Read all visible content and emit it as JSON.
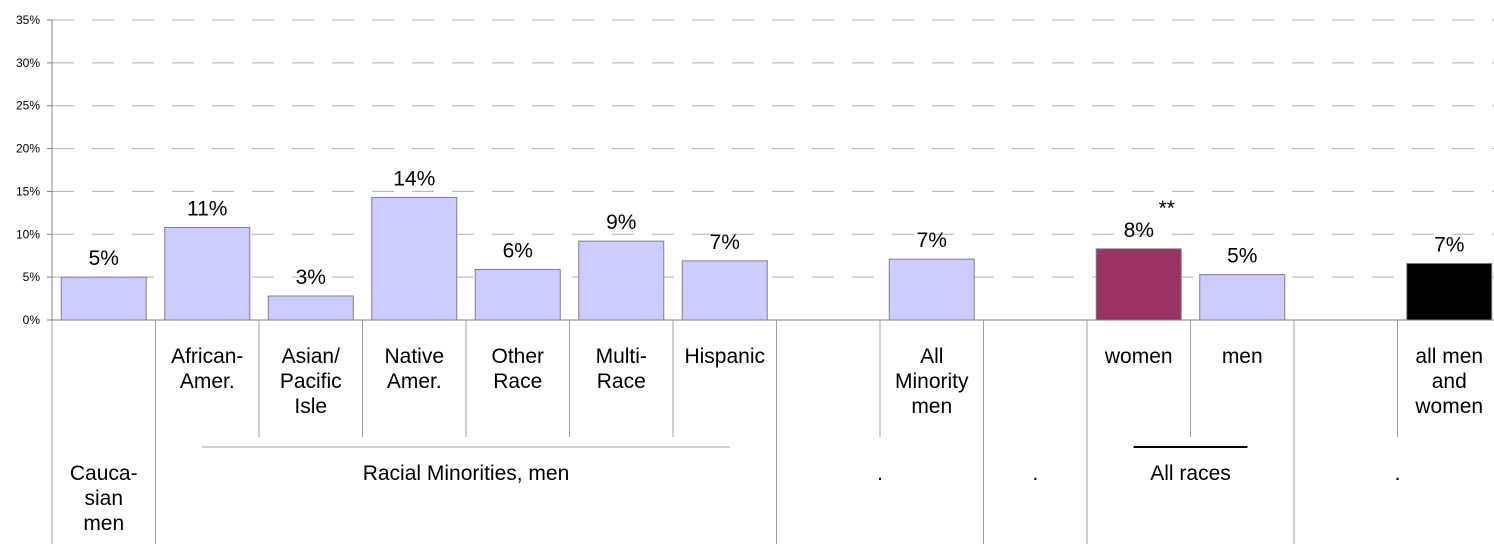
{
  "chart_data": {
    "type": "bar",
    "title": "",
    "xlabel": "",
    "ylabel": "",
    "ylim": [
      0,
      35
    ],
    "y_ticks": [
      {
        "value": 0,
        "label": "0%"
      },
      {
        "value": 5,
        "label": "5%"
      },
      {
        "value": 10,
        "label": "10%"
      },
      {
        "value": 15,
        "label": "15%"
      },
      {
        "value": 20,
        "label": "20%"
      },
      {
        "value": 25,
        "label": "25%"
      },
      {
        "value": 30,
        "label": "30%"
      },
      {
        "value": 35,
        "label": "35%"
      }
    ],
    "grid": "dashed horizontal",
    "categories": [
      {
        "lines": [],
        "value": 5,
        "label": "5%",
        "color": "#ccccff"
      },
      {
        "lines": [
          "African-",
          "Amer."
        ],
        "value": 10.8,
        "label": "11%",
        "color": "#ccccff"
      },
      {
        "lines": [
          "Asian/",
          "Pacific",
          "Isle"
        ],
        "value": 2.8,
        "label": "3%",
        "color": "#ccccff"
      },
      {
        "lines": [
          "Native",
          "Amer."
        ],
        "value": 14.3,
        "label": "14%",
        "color": "#ccccff"
      },
      {
        "lines": [
          "Other",
          "Race"
        ],
        "value": 5.9,
        "label": "6%",
        "color": "#ccccff"
      },
      {
        "lines": [
          "Multi-",
          "Race"
        ],
        "value": 9.2,
        "label": "9%",
        "color": "#ccccff"
      },
      {
        "lines": [
          "Hispanic"
        ],
        "value": 6.9,
        "label": "7%",
        "color": "#ccccff"
      },
      {
        "lines": [],
        "value": null,
        "label": "",
        "color": ""
      },
      {
        "lines": [
          "All",
          "Minority",
          "men"
        ],
        "value": 7.1,
        "label": "7%",
        "color": "#ccccff"
      },
      {
        "lines": [],
        "value": null,
        "label": "",
        "color": ""
      },
      {
        "lines": [
          "women"
        ],
        "value": 8.3,
        "label": "8%",
        "color": "#993366"
      },
      {
        "lines": [
          "men"
        ],
        "value": 5.3,
        "label": "5%",
        "color": "#ccccff"
      },
      {
        "lines": [],
        "value": null,
        "label": "",
        "color": ""
      },
      {
        "lines": [
          "all men",
          "and",
          "women"
        ],
        "value": 6.6,
        "label": "7%",
        "color": "#000000"
      }
    ],
    "groups": [
      {
        "lines": [
          "Cauca-",
          "sian",
          "men"
        ],
        "start": 0,
        "end": 0,
        "underline": false
      },
      {
        "lines": [
          "Racial Minorities, men"
        ],
        "start": 1,
        "end": 6,
        "underline": true
      },
      {
        "lines": [
          "."
        ],
        "start": 7,
        "end": 8,
        "underline": false
      },
      {
        "lines": [
          "."
        ],
        "start": 9,
        "end": 9,
        "underline": false
      },
      {
        "lines": [
          "All races"
        ],
        "start": 10,
        "end": 11,
        "underline": true
      },
      {
        "lines": [
          "."
        ],
        "start": 12,
        "end": 13,
        "underline": false
      }
    ],
    "annotation": {
      "text": "**",
      "category": 10
    }
  }
}
